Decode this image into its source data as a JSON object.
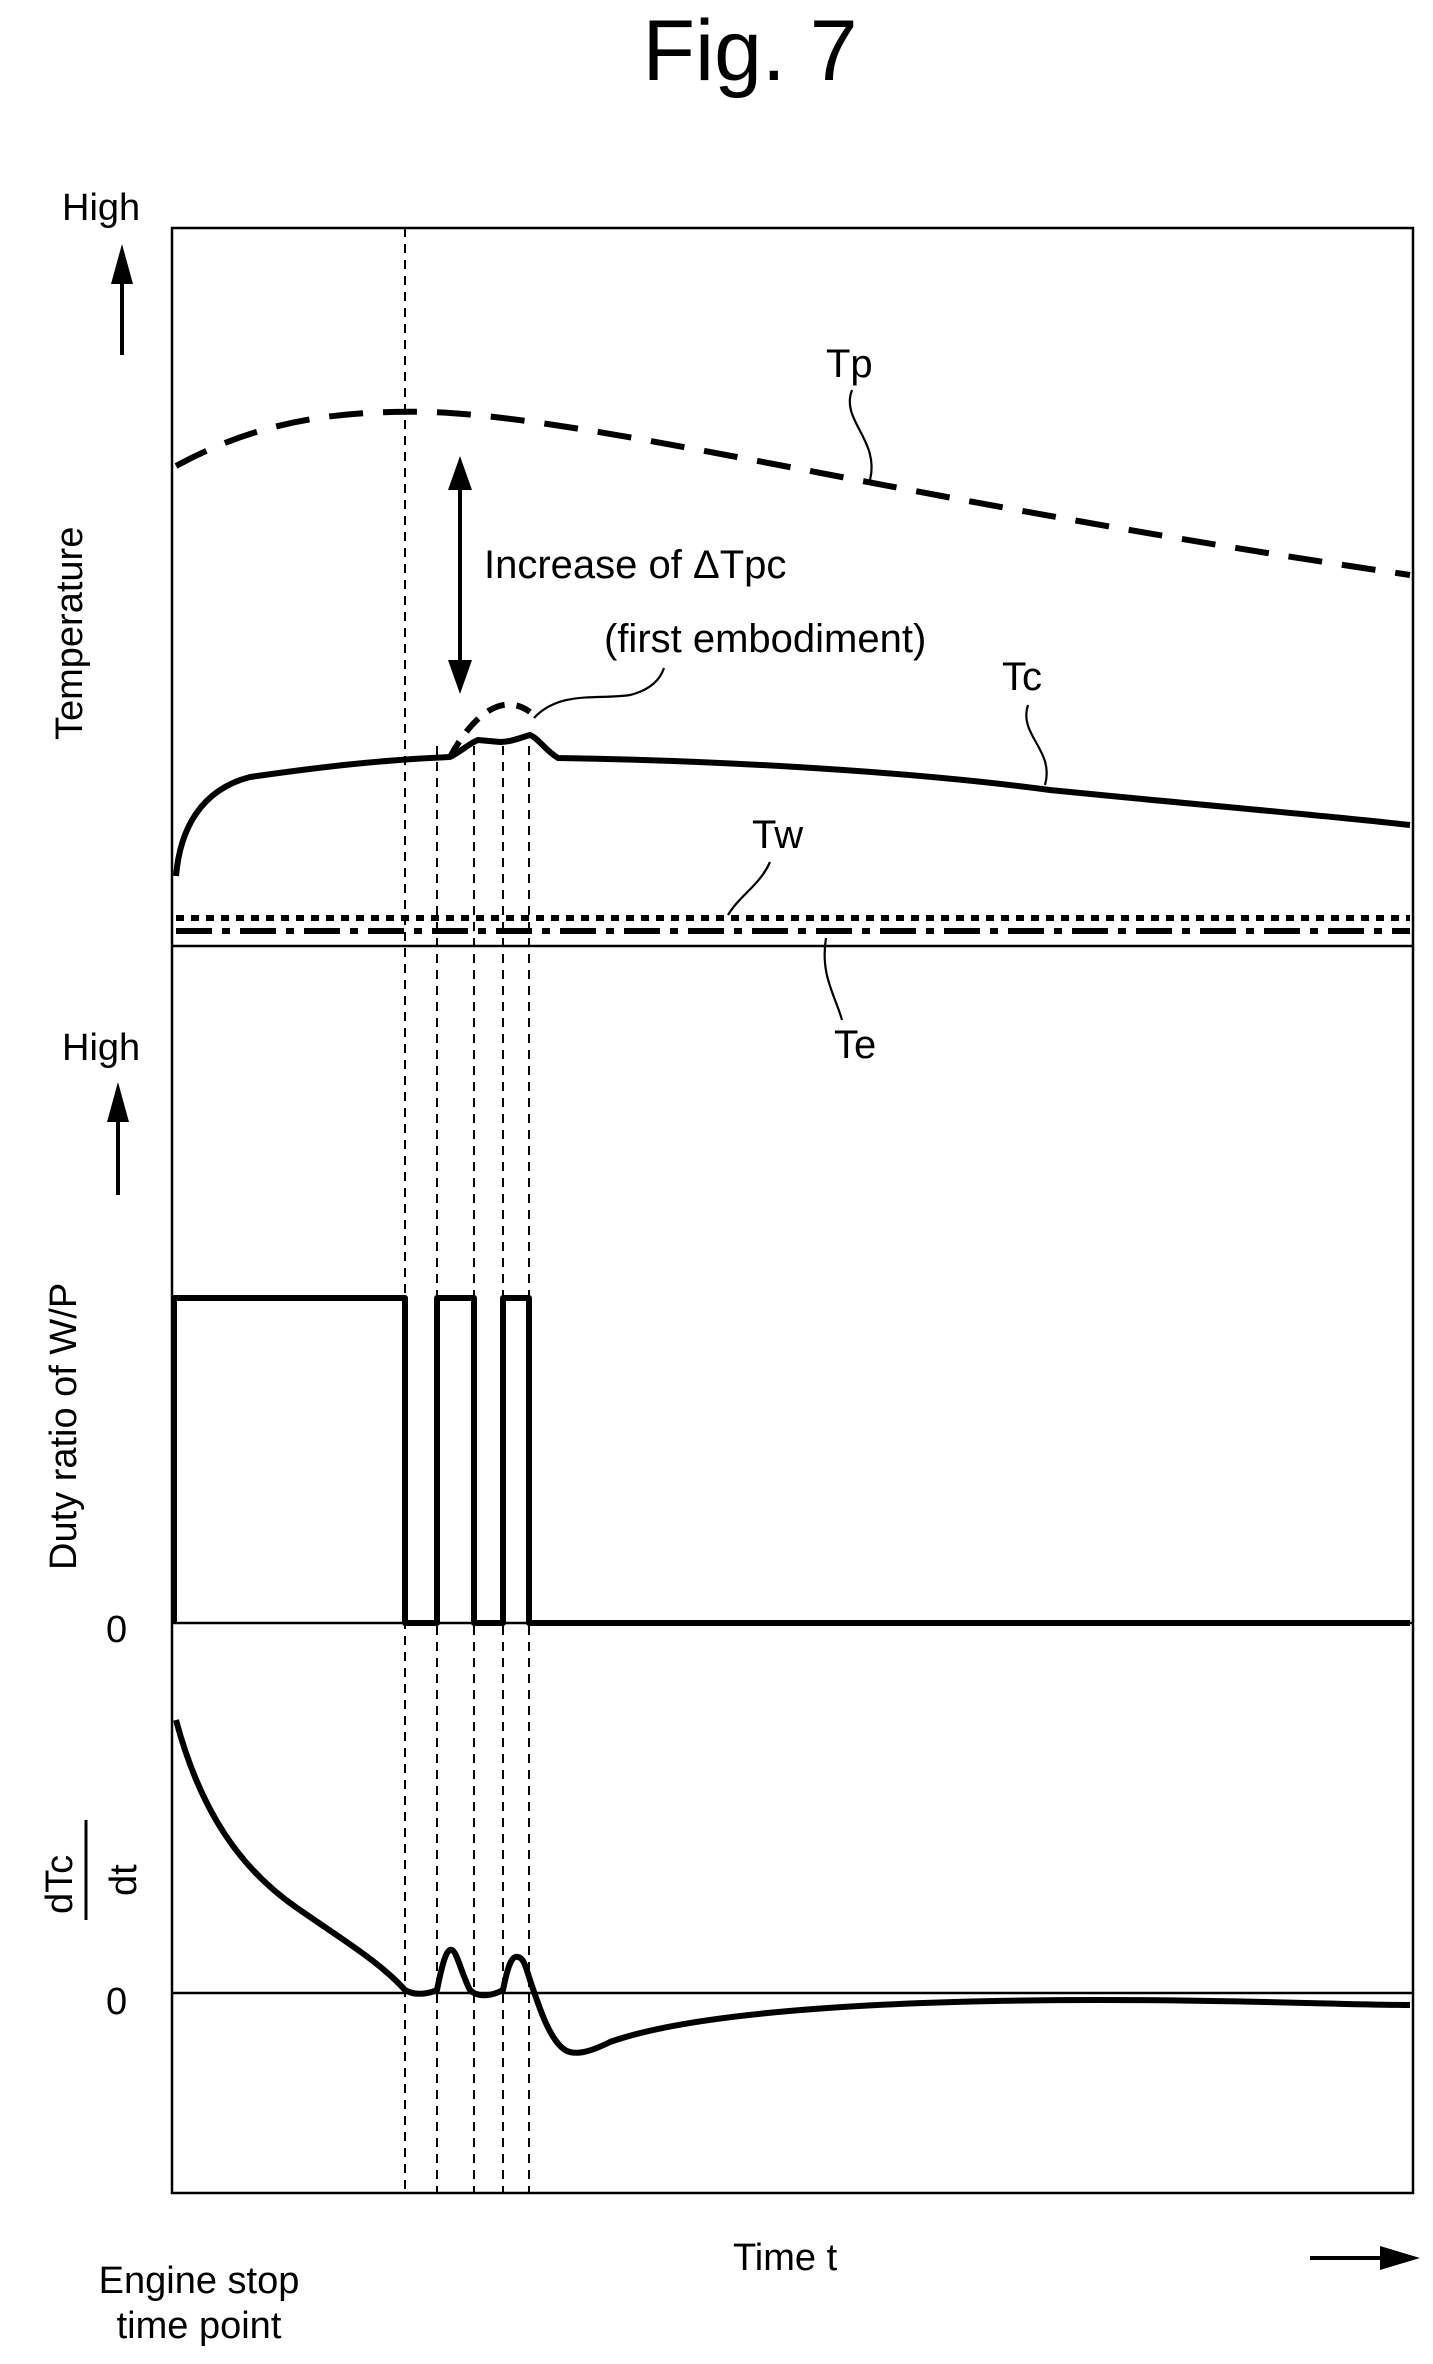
{
  "figure": {
    "title": "Fig. 7",
    "temperature_panel": {
      "high_label": "High",
      "axis_label": "Temperature",
      "annotation_delta": "Increase of ΔTpc",
      "annotation_first": "(first embodiment)",
      "curves": {
        "tp": "Tp",
        "tc": "Tc",
        "tw": "Tw",
        "te": "Te"
      }
    },
    "duty_panel": {
      "high_label": "High",
      "axis_label": "Duty ratio of W/P",
      "zero_label": "0"
    },
    "derivative_panel": {
      "numerator": "dTc",
      "denominator": "dt",
      "zero_label": "0"
    },
    "time_axis": {
      "label": "Time t",
      "origin_line1": "Engine stop",
      "origin_line2": "time point"
    }
  }
}
